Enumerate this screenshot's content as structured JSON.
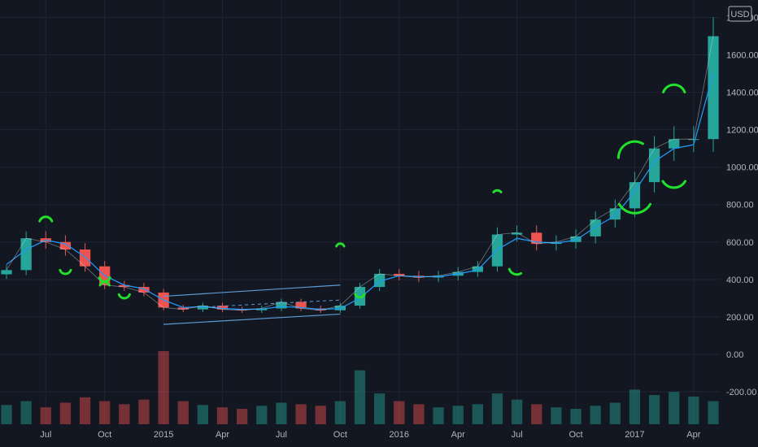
{
  "chart_data": {
    "type": "candlestick",
    "instrument_currency": "USD",
    "title": "",
    "x": [
      "2014-05",
      "2014-06",
      "2014-07",
      "2014-08",
      "2014-09",
      "2014-10",
      "2014-11",
      "2014-12",
      "2015-01",
      "2015-02",
      "2015-03",
      "2015-04",
      "2015-05",
      "2015-06",
      "2015-07",
      "2015-08",
      "2015-09",
      "2015-10",
      "2015-11",
      "2015-12",
      "2016-01",
      "2016-02",
      "2016-03",
      "2016-04",
      "2016-05",
      "2016-06",
      "2016-07",
      "2016-08",
      "2016-09",
      "2016-10",
      "2016-11",
      "2016-12",
      "2017-01",
      "2017-02",
      "2017-03",
      "2017-04",
      "2017-05"
    ],
    "series": [
      {
        "values": [
          450,
          620,
          600,
          560,
          470,
          370,
          360,
          330,
          250,
          240,
          260,
          240,
          235,
          245,
          280,
          245,
          235,
          260,
          360,
          430,
          420,
          410,
          420,
          440,
          470,
          640,
          650,
          590,
          600,
          630,
          720,
          780,
          920,
          1100,
          1150,
          1150,
          1700
        ]
      },
      {
        "values": [
          480,
          560,
          610,
          590,
          520,
          420,
          370,
          350,
          290,
          250,
          255,
          245,
          240,
          242,
          255,
          250,
          240,
          245,
          300,
          390,
          420,
          415,
          415,
          430,
          450,
          560,
          620,
          600,
          595,
          610,
          680,
          740,
          870,
          1030,
          1100,
          1120,
          1500
        ]
      }
    ],
    "volume": [
      25,
      30,
      22,
      28,
      35,
      30,
      26,
      32,
      95,
      30,
      25,
      22,
      20,
      24,
      28,
      26,
      24,
      30,
      70,
      40,
      30,
      26,
      22,
      24,
      26,
      40,
      32,
      26,
      22,
      20,
      24,
      28,
      45,
      38,
      42,
      36,
      30
    ],
    "x_tick_labels": [
      "Jul",
      "Oct",
      "2015",
      "Apr",
      "Jul",
      "Oct",
      "2016",
      "Apr",
      "Jul",
      "Oct",
      "2017",
      "Apr"
    ],
    "y_tick_labels": [
      "1800.00",
      "1600.00",
      "1400.00",
      "1200.00",
      "1000.00",
      "800.00",
      "600.00",
      "400.00",
      "200.00",
      "0.00",
      "-200.00"
    ],
    "ylim": [
      -300,
      1850
    ],
    "grid": true,
    "annotations": [
      "channel",
      "hand-drawn-green-arcs"
    ]
  },
  "colors": {
    "background": "#131722",
    "grid": "#1f2433",
    "up": "#26a69a",
    "down": "#ef5350",
    "ma": "#2196f3",
    "channel": "#5b9bd5",
    "highlight": "#22e02c",
    "axis_text": "#b2b5be"
  }
}
